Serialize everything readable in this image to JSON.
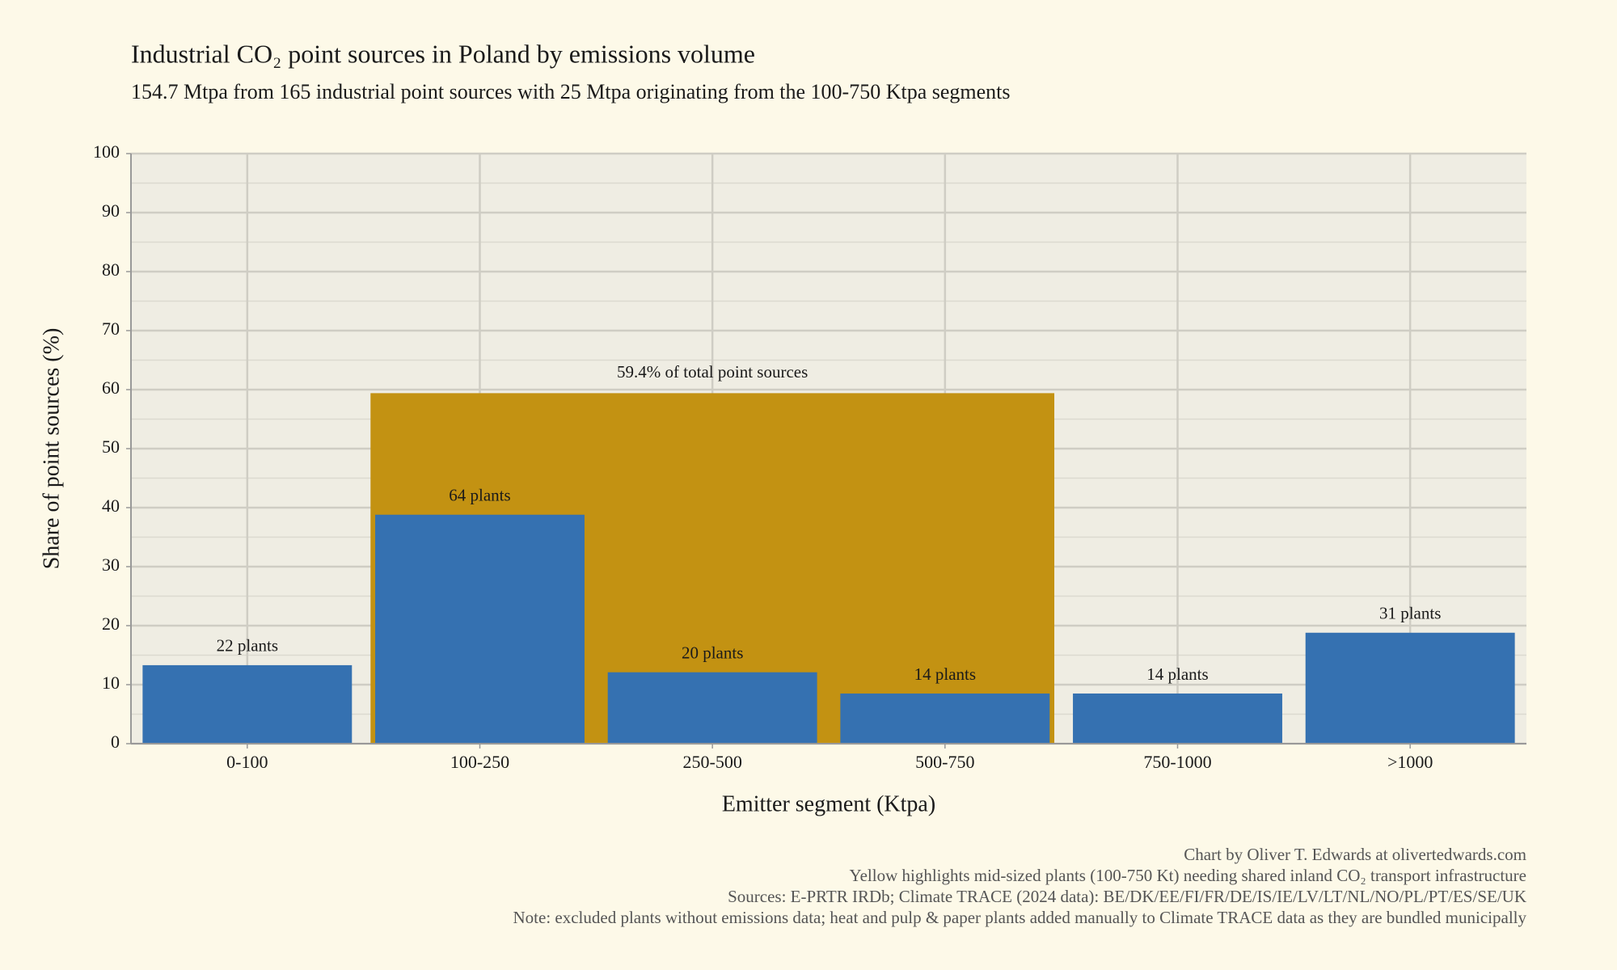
{
  "chart_data": {
    "type": "bar",
    "title": "Industrial CO₂ point sources in Poland by emissions volume",
    "subtitle": "154.7 Mtpa from 165 industrial point sources with 25 Mtpa originating from the 100-750 Ktpa segments",
    "x_label": "Emitter segment (Ktpa)",
    "y_label": "Share of point sources (%)",
    "categories": [
      "0-100",
      "100-250",
      "250-500",
      "500-750",
      "750-1000",
      ">1000"
    ],
    "values": [
      13.3,
      38.8,
      12.1,
      8.5,
      8.5,
      18.8
    ],
    "bar_labels": [
      "22 plants",
      "64 plants",
      "20 plants",
      "14 plants",
      "14 plants",
      "31 plants"
    ],
    "color": "#3571b1",
    "highlight": {
      "span": [
        "100-250",
        "500-750"
      ],
      "value": 59.4,
      "label": "59.4% of total point sources",
      "color": "#c39212"
    },
    "ylim": [
      0,
      100
    ],
    "yticks": [
      0,
      10,
      20,
      30,
      40,
      50,
      60,
      70,
      80,
      90,
      100
    ],
    "grid": true,
    "footnotes": [
      "Chart by Oliver T. Edwards at olivertedwards.com",
      "Yellow highlights mid-sized plants (100-750 Kt) needing shared inland CO₂ transport infrastructure",
      "Sources: E-PRTR IRDb; Climate TRACE (2024 data): BE/DK/EE/FI/FR/DE/IS/IE/LV/LT/NL/NO/PL/PT/ES/SE/UK",
      "Note: excluded plants without emissions data; heat and pulp & paper plants added manually to Climate TRACE data as they are bundled municipally"
    ]
  }
}
